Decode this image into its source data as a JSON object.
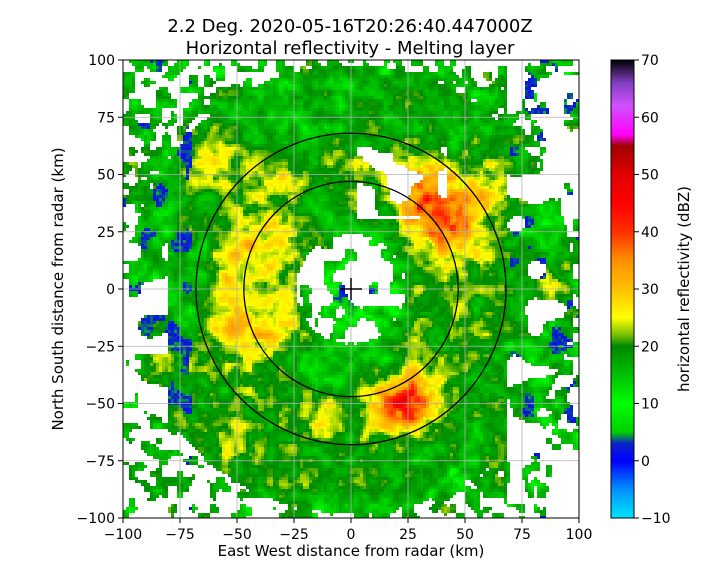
{
  "chart_data": {
    "type": "heatmap",
    "title_line1": "2.2 Deg. 2020-05-16T20:26:40.447000Z",
    "title_line2": "Horizontal reflectivity - Melting layer",
    "xlabel": "East West distance from radar (km)",
    "ylabel": "North South distance from radar (km)",
    "xlim": [
      -100,
      100
    ],
    "ylim": [
      -100,
      100
    ],
    "xticks": [
      -100,
      -75,
      -50,
      -25,
      0,
      25,
      50,
      75,
      100
    ],
    "yticks": [
      -100,
      -75,
      -50,
      -25,
      0,
      25,
      50,
      75,
      100
    ],
    "grid": true,
    "colorbar": {
      "label": "horizontal reflectivity (dBZ)",
      "range": [
        -10,
        70
      ],
      "ticks": [
        -10,
        0,
        10,
        20,
        30,
        40,
        50,
        60,
        70
      ],
      "colormap": [
        {
          "v": -10,
          "c": "#00e5ff"
        },
        {
          "v": -5,
          "c": "#0090ff"
        },
        {
          "v": 0,
          "c": "#0000ff"
        },
        {
          "v": 3,
          "c": "#0a24c8"
        },
        {
          "v": 5,
          "c": "#00d000"
        },
        {
          "v": 10,
          "c": "#00ff00"
        },
        {
          "v": 15,
          "c": "#00c000"
        },
        {
          "v": 20,
          "c": "#008800"
        },
        {
          "v": 22,
          "c": "#7ac000"
        },
        {
          "v": 25,
          "c": "#ffff00"
        },
        {
          "v": 30,
          "c": "#ffc000"
        },
        {
          "v": 35,
          "c": "#ff9000"
        },
        {
          "v": 40,
          "c": "#ff3000"
        },
        {
          "v": 45,
          "c": "#ff0000"
        },
        {
          "v": 50,
          "c": "#e00000"
        },
        {
          "v": 55,
          "c": "#a00000"
        },
        {
          "v": 57,
          "c": "#ff00ff"
        },
        {
          "v": 62,
          "c": "#d050ff"
        },
        {
          "v": 66,
          "c": "#8040c0"
        },
        {
          "v": 70,
          "c": "#000000"
        }
      ]
    },
    "melting_layer_rings_km": [
      47,
      68
    ],
    "radar_location": [
      0,
      0
    ]
  }
}
